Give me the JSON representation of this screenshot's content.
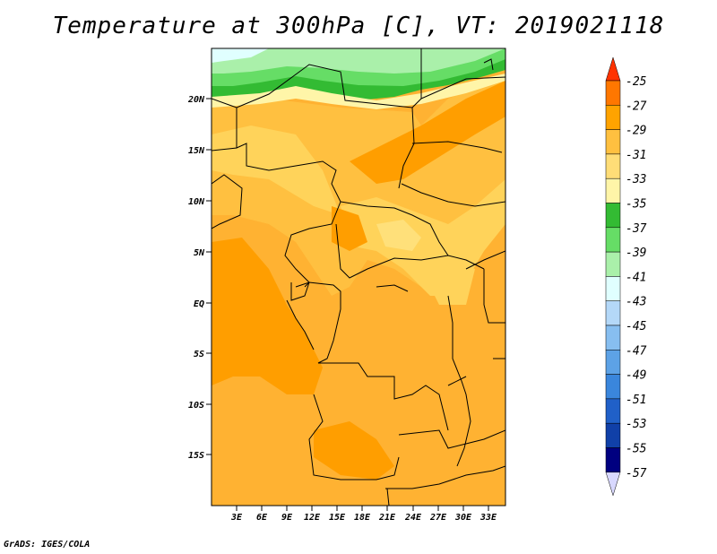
{
  "title": "Temperature at 300hPa [C], VT: 2019021118",
  "credit": "GrADS: IGES/COLA",
  "map": {
    "lat_labels": [
      "20N",
      "15N",
      "10N",
      "5N",
      "EQ",
      "5S",
      "10S",
      "15S"
    ],
    "lon_labels": [
      "3E",
      "6E",
      "9E",
      "12E",
      "15E",
      "18E",
      "21E",
      "24E",
      "27E",
      "30E",
      "33E"
    ]
  },
  "colorbar": {
    "labels": [
      "-25",
      "-27",
      "-29",
      "-31",
      "-33",
      "-35",
      "-37",
      "-39",
      "-41",
      "-43",
      "-45",
      "-47",
      "-49",
      "-51",
      "-53",
      "-55",
      "-57"
    ],
    "colors": [
      "#ff3300",
      "#ff7700",
      "#ffa300",
      "#ffc040",
      "#ffdd77",
      "#fff5a8",
      "#33bb33",
      "#66dd66",
      "#aaf0aa",
      "#e0ffff",
      "#b4d8f8",
      "#87bef0",
      "#5da2e6",
      "#3a86dc",
      "#2060c8",
      "#1040a8",
      "#000080",
      "#d8d8ff"
    ]
  }
}
